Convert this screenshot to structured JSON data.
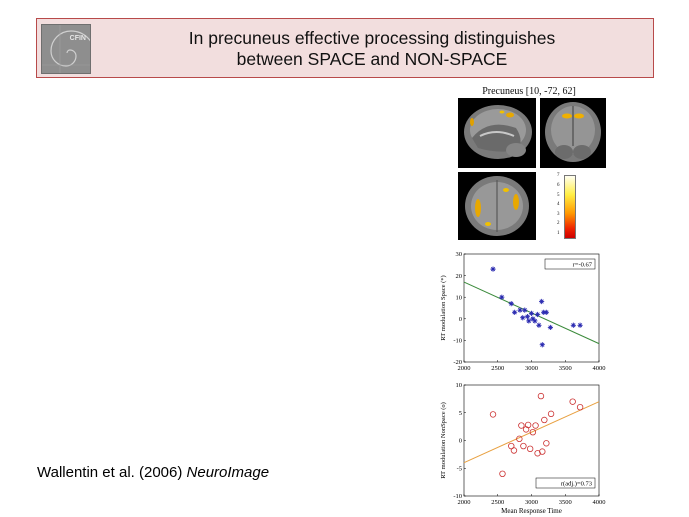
{
  "header": {
    "logo_label": "CFIN",
    "title_line1": "In precuneus effective processing distinguishes",
    "title_line2": "between SPACE and NON-SPACE"
  },
  "citation": {
    "authors": "Wallentin et al. (2006) ",
    "journal": "NeuroImage"
  },
  "brain_panel": {
    "title": "Precuneus [10, -72, 62]",
    "colorbar_ticks": [
      "7",
      "6",
      "5",
      "4",
      "3",
      "2",
      "1"
    ]
  },
  "chart_data": [
    {
      "type": "scatter",
      "ylabel": "RT modulation Space (*)",
      "xlabel": "",
      "annotation": "r=-0.67",
      "xlim": [
        2000,
        4000
      ],
      "ylim": [
        -20,
        30
      ],
      "xticks": [
        "2000",
        "2500",
        "3000",
        "3500",
        "4000"
      ],
      "yticks": [
        "30",
        "20",
        "10",
        "0",
        "-10",
        "-20"
      ],
      "marker": "star",
      "marker_color": "#2a2ab0",
      "fit_color": "#3a8a3a",
      "fit_line": [
        [
          2000,
          17
        ],
        [
          4000,
          -11.5
        ]
      ],
      "points": [
        [
          2430,
          23
        ],
        [
          2560,
          10
        ],
        [
          2700,
          7
        ],
        [
          2750,
          3
        ],
        [
          2830,
          4
        ],
        [
          2870,
          0.5
        ],
        [
          2900,
          4
        ],
        [
          2940,
          1
        ],
        [
          2960,
          -1
        ],
        [
          3000,
          2.5
        ],
        [
          3020,
          0
        ],
        [
          3050,
          -1
        ],
        [
          3090,
          2
        ],
        [
          3110,
          -3
        ],
        [
          3150,
          8
        ],
        [
          3180,
          3
        ],
        [
          3160,
          -12
        ],
        [
          3220,
          3
        ],
        [
          3280,
          -4
        ],
        [
          3620,
          -3
        ],
        [
          3720,
          -3
        ]
      ]
    },
    {
      "type": "scatter",
      "ylabel": "RT modulation NonSpace (o)",
      "xlabel": "Mean Response Time",
      "annotation": "r(adj.)=0.73",
      "xlim": [
        2000,
        4000
      ],
      "ylim": [
        -10,
        10
      ],
      "xticks": [
        "2000",
        "2500",
        "3000",
        "3500",
        "4000"
      ],
      "yticks": [
        "10",
        "5",
        "0",
        "-5",
        "-10"
      ],
      "marker": "circle",
      "marker_color": "#cc3333",
      "fit_color": "#e8a040",
      "fit_line": [
        [
          2000,
          -4
        ],
        [
          4000,
          7
        ]
      ],
      "points": [
        [
          2430,
          4.7
        ],
        [
          2570,
          -6
        ],
        [
          2700,
          -1
        ],
        [
          2740,
          -1.8
        ],
        [
          2820,
          0.3
        ],
        [
          2850,
          2.7
        ],
        [
          2880,
          -1
        ],
        [
          2920,
          2
        ],
        [
          2950,
          2.8
        ],
        [
          2980,
          -1.5
        ],
        [
          3020,
          1.5
        ],
        [
          3060,
          2.7
        ],
        [
          3090,
          -2.3
        ],
        [
          3140,
          8
        ],
        [
          3160,
          -2
        ],
        [
          3190,
          3.7
        ],
        [
          3220,
          -0.5
        ],
        [
          3290,
          4.8
        ],
        [
          3610,
          7
        ],
        [
          3720,
          6
        ]
      ]
    }
  ]
}
